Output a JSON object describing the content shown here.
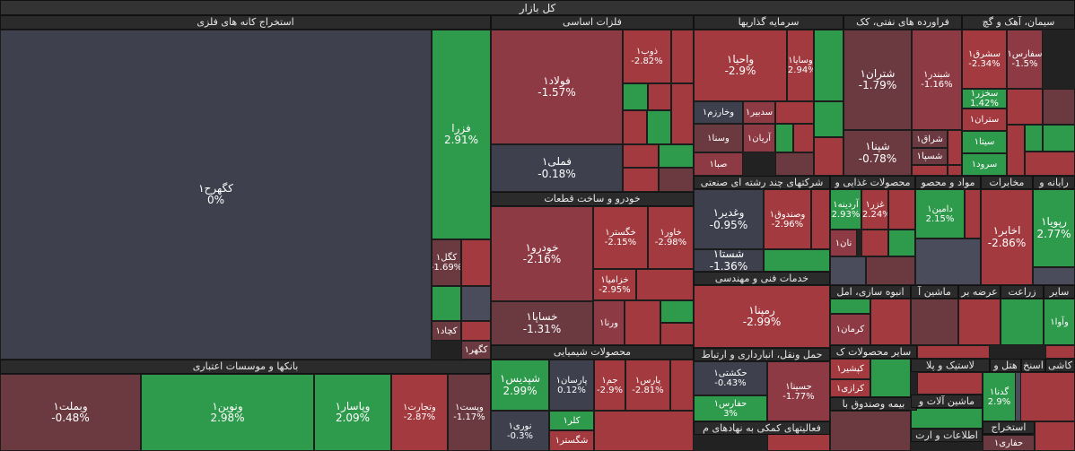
{
  "title": "کل بازار",
  "sectors": [
    {
      "name": "استخراج کانه های فلزی"
    },
    {
      "name": "فلزات اساسی"
    },
    {
      "name": "سرمایه گذاریها"
    },
    {
      "name": "فراورده های نفتی، کک"
    },
    {
      "name": "سیمان، آهک و گچ"
    },
    {
      "name": "بانکها و موسسات اعتباری"
    },
    {
      "name": "خودرو و ساخت قطعات"
    },
    {
      "name": "شرکتهای چند رشته ای صنعتی"
    },
    {
      "name": "محصولات غذایی و"
    },
    {
      "name": "مواد و محصو"
    },
    {
      "name": "مخابرات"
    },
    {
      "name": "رایانه و"
    },
    {
      "name": "خدمات فنی و مهندسی"
    },
    {
      "name": "محصولات شیمیایی"
    },
    {
      "name": "انبوه سازی، امل"
    },
    {
      "name": "ماشین آ"
    },
    {
      "name": "عرضه بر"
    },
    {
      "name": "زراعت"
    },
    {
      "name": "سایر"
    },
    {
      "name": "حمل ونقل، انبارداری و ارتباط"
    },
    {
      "name": "سایر محصولات ک"
    },
    {
      "name": "لاستیک و پلا"
    },
    {
      "name": "هتل و"
    },
    {
      "name": "اسنخ"
    },
    {
      "name": "کاشی"
    },
    {
      "name": "بیمه وصندوق با"
    },
    {
      "name": "ماشین آلات و"
    },
    {
      "name": "فعالیتهای کمکی به نهادهای م"
    },
    {
      "name": "اطلاعات و ارت"
    },
    {
      "name": "بیم"
    },
    {
      "name": "ساخ"
    },
    {
      "name": "استخراج"
    }
  ],
  "stocks": [
    {
      "name": "کگهرح۱",
      "value": "0%"
    },
    {
      "name": "فزرا",
      "value": "2.91%"
    },
    {
      "name": "کگل۱",
      "value": "-1.69%"
    },
    {
      "name": "کچاد۱",
      "value": ""
    },
    {
      "name": "کگهر۱",
      "value": ""
    },
    {
      "name": "فولاد۱",
      "value": "-1.57%"
    },
    {
      "name": "ذوب۱",
      "value": "-2.82%"
    },
    {
      "name": "فملی۱",
      "value": "-0.18%"
    },
    {
      "name": "واحیا۱",
      "value": "-2.9%"
    },
    {
      "name": "وسایا۱",
      "value": "-2.94%"
    },
    {
      "name": "وخارزم۱",
      "value": ""
    },
    {
      "name": "سدبیر۱",
      "value": ""
    },
    {
      "name": "وسنا۱",
      "value": ""
    },
    {
      "name": "آریان۱",
      "value": ""
    },
    {
      "name": "صبا۱",
      "value": ""
    },
    {
      "name": "شتران۱",
      "value": "-1.79%"
    },
    {
      "name": "شبندر۱",
      "value": "-1.16%"
    },
    {
      "name": "شراق۱",
      "value": ""
    },
    {
      "name": "شسپا۱",
      "value": ""
    },
    {
      "name": "شپنا۱",
      "value": "-0.78%"
    },
    {
      "name": "سشرق۱",
      "value": "-2.34%"
    },
    {
      "name": "سفارس۱",
      "value": "-1.5%"
    },
    {
      "name": "سخزر۱",
      "value": "1.42%"
    },
    {
      "name": "ستران۱",
      "value": ""
    },
    {
      "name": "سیتا۱",
      "value": ""
    },
    {
      "name": "سرود۱",
      "value": ""
    },
    {
      "name": "وبملت۱",
      "value": "-0.48%"
    },
    {
      "name": "ونوین۱",
      "value": "2.98%"
    },
    {
      "name": "وپاسار۱",
      "value": "2.09%"
    },
    {
      "name": "وتجارت۱",
      "value": "-2.87%"
    },
    {
      "name": "وپست۱",
      "value": "-1.17%"
    },
    {
      "name": "خودرو۱",
      "value": "-2.16%"
    },
    {
      "name": "خگستر۱",
      "value": "-2.15%"
    },
    {
      "name": "خاور۱",
      "value": "-2.98%"
    },
    {
      "name": "خزامیا۱",
      "value": "-2.95%"
    },
    {
      "name": "خساپا۱",
      "value": "-1.31%"
    },
    {
      "name": "ورنا۱",
      "value": ""
    },
    {
      "name": "وغدیر۱",
      "value": "-0.95%"
    },
    {
      "name": "وصندوق۱",
      "value": "-2.96%"
    },
    {
      "name": "شستا۱",
      "value": "-1.36%"
    },
    {
      "name": "دامین۱",
      "value": "2.15%"
    },
    {
      "name": "آردینه۱",
      "value": "2.93%"
    },
    {
      "name": "غزر۱",
      "value": "-2.24%"
    },
    {
      "name": "نان۱",
      "value": ""
    },
    {
      "name": "اخابر۱",
      "value": "-2.86%"
    },
    {
      "name": "رپویا۱",
      "value": "2.77%"
    },
    {
      "name": "رمپنا۱",
      "value": "-2.99%"
    },
    {
      "name": "شپدیس۱",
      "value": "2.99%"
    },
    {
      "name": "پارسان۱",
      "value": "0.12%"
    },
    {
      "name": "جم۱",
      "value": "-2.9%"
    },
    {
      "name": "پارس۱",
      "value": "-2.81%"
    },
    {
      "name": "نوری۱",
      "value": "-0.3%"
    },
    {
      "name": "کلر۱",
      "value": ""
    },
    {
      "name": "شگستر۱",
      "value": ""
    },
    {
      "name": "کرمان۱",
      "value": ""
    },
    {
      "name": "وآوا۱",
      "value": ""
    },
    {
      "name": "حکشتی۱",
      "value": "-0.43%"
    },
    {
      "name": "حسینا۱",
      "value": "-1.77%"
    },
    {
      "name": "حفارس۱",
      "value": "3%"
    },
    {
      "name": "کپشیر۱",
      "value": ""
    },
    {
      "name": "کرازی۱",
      "value": ""
    },
    {
      "name": "گدنا۱",
      "value": "2.9%"
    },
    {
      "name": "حفاری۱",
      "value": ""
    }
  ]
}
